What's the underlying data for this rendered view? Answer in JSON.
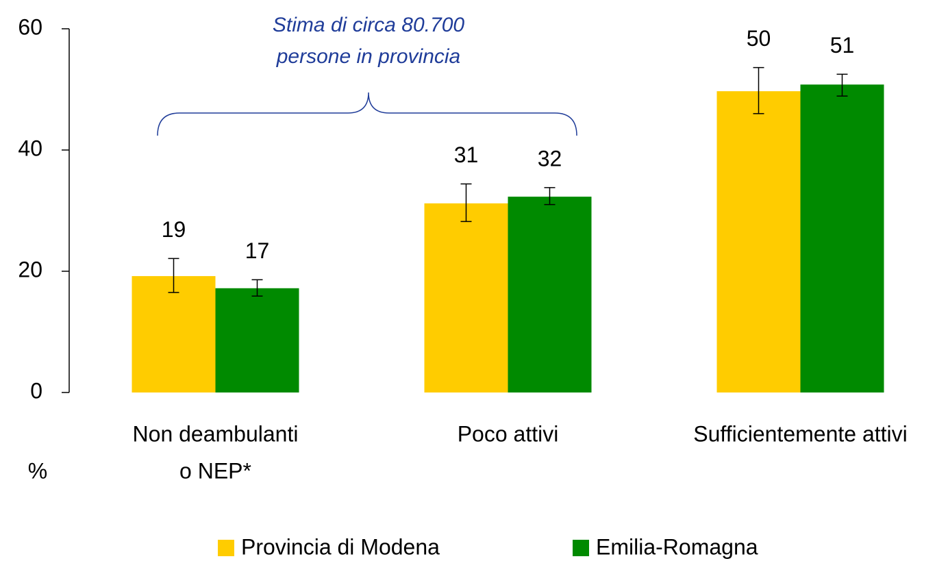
{
  "chart_data": {
    "type": "bar",
    "annotation": [
      "Stima di circa 80.700",
      "persone in provincia"
    ],
    "y_label": "%",
    "categories": [
      [
        "Non deambulanti",
        "o NEP*"
      ],
      [
        "Poco attivi"
      ],
      [
        "Sufficientemente attivi"
      ]
    ],
    "series": [
      {
        "name": "Provincia di Modena",
        "color": "#ffcc00",
        "values": [
          19.2,
          31.2,
          49.7
        ],
        "value_labels": [
          "19",
          "31",
          "50"
        ],
        "ci_low": [
          16.5,
          28.2,
          46.0
        ],
        "ci_high": [
          22.1,
          34.4,
          53.6
        ]
      },
      {
        "name": "Emilia-Romagna",
        "color": "#008a00",
        "values": [
          17.2,
          32.3,
          50.8
        ],
        "value_labels": [
          "17",
          "32",
          "51"
        ],
        "ci_low": [
          15.9,
          31.0,
          48.9
        ],
        "ci_high": [
          18.6,
          33.8,
          52.5
        ]
      }
    ],
    "ylim": [
      0,
      60
    ],
    "yticks": [
      0,
      20,
      40,
      60
    ],
    "legend": "bottom"
  }
}
